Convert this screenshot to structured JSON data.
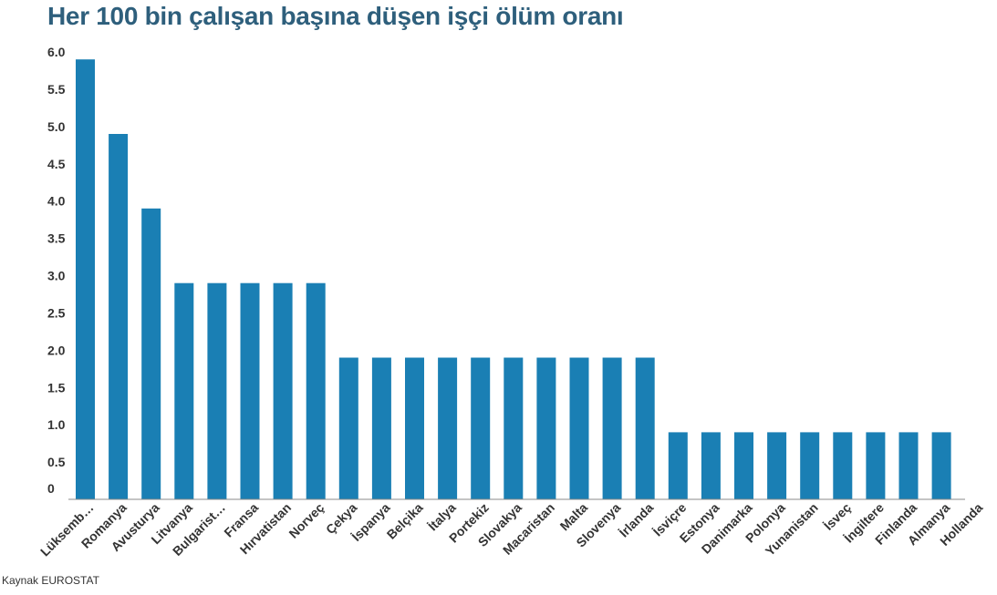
{
  "chart_data": {
    "type": "bar",
    "title": "Her 100 bin çalışan başına düşen işçi ölüm oranı",
    "xlabel": "",
    "ylabel": "",
    "ylim": [
      0,
      6.0
    ],
    "yticks": [
      "0",
      "0.5",
      "1.0",
      "1.5",
      "2.0",
      "2.5",
      "3.0",
      "3.5",
      "4.0",
      "4.5",
      "5.0",
      "5.5",
      "6.0"
    ],
    "grid": false,
    "bar_color": "#1a7fb4",
    "categories": [
      "Lüksemb…",
      "Romanya",
      "Avusturya",
      "Litvanya",
      "Bulgarist…",
      "Fransa",
      "Hırvatistan",
      "Norveç",
      "Çekya",
      "İspanya",
      "Belçika",
      "İtalya",
      "Portekiz",
      "Slovakya",
      "Macaristan",
      "Malta",
      "Slovenya",
      "İrlanda",
      "İsviçre",
      "Estonya",
      "Danimarka",
      "Polonya",
      "Yunanistan",
      "İsveç",
      "İngiltere",
      "Finlanda",
      "Almanya",
      "Hollanda"
    ],
    "values": [
      5.9,
      4.9,
      3.9,
      2.9,
      2.9,
      2.9,
      2.9,
      2.9,
      1.9,
      1.9,
      1.9,
      1.9,
      1.9,
      1.9,
      1.9,
      1.9,
      1.9,
      1.9,
      0.9,
      0.9,
      0.9,
      0.9,
      0.9,
      0.9,
      0.9,
      0.9,
      0.9,
      0
    ]
  },
  "source": "Kaynak EUROSTAT"
}
